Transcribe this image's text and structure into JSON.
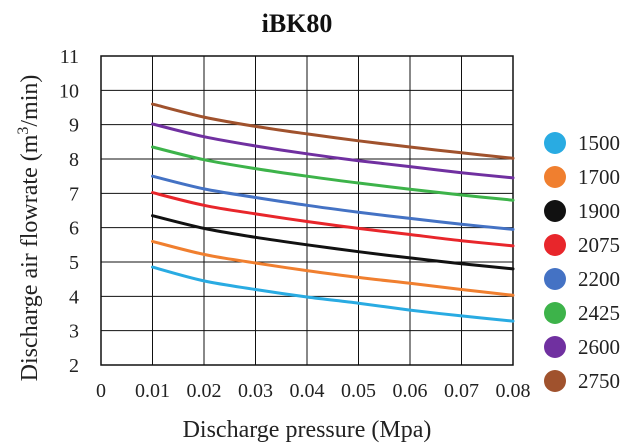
{
  "chart_data": {
    "type": "line",
    "title": "iBK80",
    "xlabel": "Discharge pressure (Mpa)",
    "ylabel_main": "Discharge air flowrate (m",
    "ylabel_sup": "3",
    "ylabel_tail": "/min)",
    "xlim": [
      0,
      0.08
    ],
    "ylim": [
      2,
      11
    ],
    "x_ticks": [
      "0",
      "0.01",
      "0.02",
      "0.03",
      "0.04",
      "0.05",
      "0.06",
      "0.07",
      "0.08"
    ],
    "y_ticks": [
      "2",
      "3",
      "4",
      "5",
      "6",
      "7",
      "8",
      "9",
      "10",
      "11"
    ],
    "grid": true,
    "legend_position": "right",
    "x": [
      0.01,
      0.02,
      0.03,
      0.04,
      0.05,
      0.06,
      0.07,
      0.08
    ],
    "series": [
      {
        "name": "1500",
        "color": "#29abe2",
        "values": [
          4.85,
          4.45,
          4.2,
          3.98,
          3.8,
          3.6,
          3.43,
          3.28
        ]
      },
      {
        "name": "1700",
        "color": "#f07f2f",
        "values": [
          5.6,
          5.22,
          4.97,
          4.75,
          4.55,
          4.38,
          4.2,
          4.03
        ]
      },
      {
        "name": "1900",
        "color": "#111111",
        "values": [
          6.35,
          5.98,
          5.72,
          5.5,
          5.3,
          5.12,
          4.95,
          4.8
        ]
      },
      {
        "name": "2075",
        "color": "#e8262b",
        "values": [
          7.02,
          6.65,
          6.4,
          6.18,
          5.98,
          5.8,
          5.62,
          5.47
        ]
      },
      {
        "name": "2200",
        "color": "#4472c4",
        "values": [
          7.5,
          7.13,
          6.88,
          6.65,
          6.45,
          6.27,
          6.1,
          5.95
        ]
      },
      {
        "name": "2425",
        "color": "#3db34a",
        "values": [
          8.35,
          7.98,
          7.72,
          7.5,
          7.3,
          7.12,
          6.95,
          6.8
        ]
      },
      {
        "name": "2600",
        "color": "#7030a0",
        "values": [
          9.02,
          8.65,
          8.38,
          8.15,
          7.95,
          7.78,
          7.6,
          7.45
        ]
      },
      {
        "name": "2750",
        "color": "#a0522d",
        "values": [
          9.6,
          9.22,
          8.95,
          8.73,
          8.53,
          8.35,
          8.18,
          8.02
        ]
      }
    ]
  }
}
